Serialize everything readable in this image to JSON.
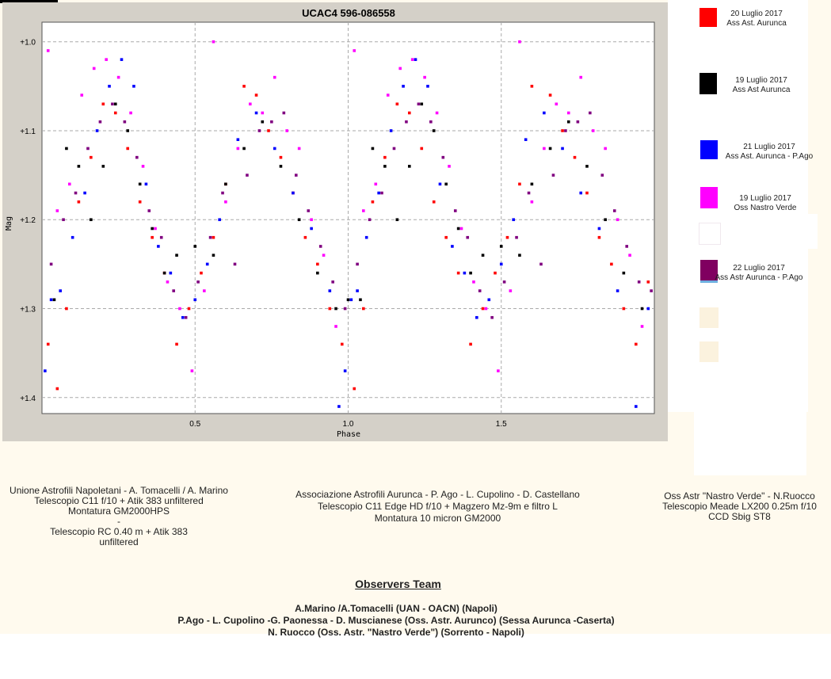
{
  "chart_data": {
    "type": "scatter",
    "title": "UCAC4 596-086558",
    "xlabel": "Phase",
    "ylabel": "Mag",
    "xlim": [
      0,
      2
    ],
    "ylim": [
      1.4,
      1.0
    ],
    "y_inverted": true,
    "grid": true,
    "xticks": [
      "0.5",
      "1.0",
      "1.5"
    ],
    "yticks": [
      "+1.0",
      "+1.1",
      "+1.2",
      "+1.3",
      "+1.4"
    ],
    "series": [
      {
        "name": "20 Luglio 2017 Ass Ast. Aurunca",
        "color": "#ff0000",
        "x": [
          0.02,
          0.05,
          0.08,
          0.12,
          0.16,
          0.2,
          0.24,
          0.28,
          0.32,
          0.36,
          0.4,
          0.44,
          0.48,
          0.52,
          0.56,
          0.6,
          0.66,
          0.7,
          0.74,
          0.78,
          0.82,
          0.86,
          0.9,
          0.94,
          0.98,
          1.02,
          1.05,
          1.08,
          1.12,
          1.16,
          1.2,
          1.24,
          1.28,
          1.32,
          1.36,
          1.4,
          1.44,
          1.48,
          1.52,
          1.56,
          1.6,
          1.66,
          1.7,
          1.74,
          1.78,
          1.82,
          1.86,
          1.9,
          1.94,
          1.98
        ],
        "values": [
          1.34,
          1.39,
          1.3,
          1.18,
          1.13,
          1.07,
          1.08,
          1.12,
          1.18,
          1.22,
          1.26,
          1.34,
          1.3,
          1.26,
          1.22,
          1.16,
          1.05,
          1.06,
          1.1,
          1.13,
          1.17,
          1.22,
          1.25,
          1.3,
          1.34,
          1.39,
          1.3,
          1.18,
          1.13,
          1.07,
          1.08,
          1.12,
          1.18,
          1.22,
          1.26,
          1.34,
          1.3,
          1.26,
          1.22,
          1.16,
          1.05,
          1.06,
          1.1,
          1.13,
          1.17,
          1.22,
          1.25,
          1.3,
          1.34,
          1.27
        ]
      },
      {
        "name": "19 Luglio 2017 Ass Ast Aurunca",
        "color": "#000000",
        "x": [
          0.04,
          0.08,
          0.12,
          0.16,
          0.2,
          0.24,
          0.28,
          0.32,
          0.36,
          0.4,
          0.44,
          0.5,
          0.56,
          0.6,
          0.66,
          0.72,
          0.78,
          0.84,
          0.9,
          0.96,
          1.0,
          1.04,
          1.08,
          1.12,
          1.16,
          1.2,
          1.24,
          1.28,
          1.32,
          1.36,
          1.4,
          1.44,
          1.5,
          1.56,
          1.6,
          1.66,
          1.72,
          1.78,
          1.84,
          1.9,
          1.96
        ],
        "values": [
          1.29,
          1.12,
          1.14,
          1.2,
          1.14,
          1.07,
          1.1,
          1.16,
          1.21,
          1.26,
          1.24,
          1.23,
          1.24,
          1.16,
          1.12,
          1.09,
          1.14,
          1.2,
          1.26,
          1.3,
          1.29,
          1.29,
          1.12,
          1.14,
          1.2,
          1.14,
          1.07,
          1.1,
          1.16,
          1.21,
          1.26,
          1.24,
          1.23,
          1.24,
          1.16,
          1.12,
          1.09,
          1.14,
          1.2,
          1.26,
          1.3
        ]
      },
      {
        "name": "21 Luglio 2017 Ass Ast. Aurunca - P.Ago",
        "color": "#0000ff",
        "x": [
          0.01,
          0.03,
          0.06,
          0.1,
          0.14,
          0.18,
          0.22,
          0.26,
          0.3,
          0.34,
          0.38,
          0.42,
          0.46,
          0.5,
          0.54,
          0.58,
          0.64,
          0.7,
          0.76,
          0.82,
          0.88,
          0.94,
          0.97,
          0.99,
          1.01,
          1.03,
          1.06,
          1.1,
          1.14,
          1.18,
          1.22,
          1.26,
          1.3,
          1.34,
          1.38,
          1.42,
          1.46,
          1.5,
          1.54,
          1.58,
          1.64,
          1.7,
          1.76,
          1.82,
          1.88,
          1.94,
          1.98
        ],
        "values": [
          1.37,
          1.29,
          1.28,
          1.22,
          1.17,
          1.1,
          1.05,
          1.02,
          1.05,
          1.16,
          1.23,
          1.26,
          1.31,
          1.29,
          1.25,
          1.2,
          1.11,
          1.08,
          1.12,
          1.17,
          1.21,
          1.28,
          1.41,
          1.37,
          1.29,
          1.28,
          1.22,
          1.17,
          1.1,
          1.05,
          1.02,
          1.05,
          1.16,
          1.23,
          1.26,
          1.31,
          1.29,
          1.25,
          1.2,
          1.11,
          1.08,
          1.12,
          1.17,
          1.21,
          1.28,
          1.41,
          1.3
        ]
      },
      {
        "name": "19 Luglio 2017 Oss Nastro Verde",
        "color": "#ff00ff",
        "x": [
          0.02,
          0.05,
          0.09,
          0.13,
          0.17,
          0.21,
          0.25,
          0.29,
          0.33,
          0.37,
          0.41,
          0.45,
          0.49,
          0.53,
          0.56,
          0.6,
          0.64,
          0.68,
          0.72,
          0.76,
          0.8,
          0.84,
          0.88,
          0.92,
          0.96,
          1.02,
          1.05,
          1.09,
          1.13,
          1.17,
          1.21,
          1.25,
          1.29,
          1.33,
          1.37,
          1.41,
          1.45,
          1.49,
          1.53,
          1.56,
          1.6,
          1.64,
          1.68,
          1.72,
          1.76,
          1.8,
          1.84,
          1.88,
          1.92,
          1.96
        ],
        "values": [
          1.01,
          1.19,
          1.16,
          1.06,
          1.03,
          1.02,
          1.04,
          1.08,
          1.14,
          1.21,
          1.27,
          1.3,
          1.37,
          1.28,
          1.0,
          1.18,
          1.12,
          1.07,
          1.08,
          1.04,
          1.1,
          1.12,
          1.2,
          1.24,
          1.32,
          1.01,
          1.19,
          1.16,
          1.06,
          1.03,
          1.02,
          1.04,
          1.08,
          1.14,
          1.21,
          1.27,
          1.3,
          1.37,
          1.28,
          1.0,
          1.18,
          1.12,
          1.07,
          1.08,
          1.04,
          1.1,
          1.12,
          1.2,
          1.24,
          1.32
        ]
      },
      {
        "name": "22 Luglio 2017 Ass Astr Aurunca - P.Ago",
        "color": "#800080",
        "x": [
          0.03,
          0.07,
          0.11,
          0.15,
          0.19,
          0.23,
          0.27,
          0.31,
          0.35,
          0.39,
          0.43,
          0.47,
          0.51,
          0.55,
          0.59,
          0.63,
          0.67,
          0.71,
          0.75,
          0.79,
          0.83,
          0.87,
          0.91,
          0.95,
          0.99,
          1.03,
          1.07,
          1.11,
          1.15,
          1.19,
          1.23,
          1.27,
          1.31,
          1.35,
          1.39,
          1.43,
          1.47,
          1.51,
          1.55,
          1.59,
          1.63,
          1.67,
          1.71,
          1.75,
          1.79,
          1.83,
          1.87,
          1.91,
          1.95,
          1.99
        ],
        "values": [
          1.25,
          1.2,
          1.17,
          1.12,
          1.09,
          1.07,
          1.09,
          1.13,
          1.19,
          1.22,
          1.28,
          1.31,
          1.27,
          1.22,
          1.17,
          1.25,
          1.15,
          1.1,
          1.09,
          1.08,
          1.15,
          1.19,
          1.23,
          1.27,
          1.3,
          1.25,
          1.2,
          1.17,
          1.12,
          1.09,
          1.07,
          1.09,
          1.13,
          1.19,
          1.22,
          1.28,
          1.31,
          1.27,
          1.22,
          1.17,
          1.25,
          1.15,
          1.1,
          1.09,
          1.08,
          1.15,
          1.19,
          1.23,
          1.27,
          1.28
        ]
      }
    ]
  },
  "legend": [
    {
      "line1": "20 Luglio 2017",
      "line2": "Ass Ast. Aurunca",
      "color": "#ff0000"
    },
    {
      "line1": "19 Luglio 2017",
      "line2": "Ass Ast Aurunca",
      "color": "#000000"
    },
    {
      "line1": "21 Luglio 2017",
      "line2": "Ass Ast. Aurunca - P.Ago",
      "color": "#0000ff"
    },
    {
      "line1": "19 Luglio 2017",
      "line2": "Oss Nastro Verde",
      "color": "#ff00ff"
    },
    {
      "line1": "22 Luglio 2017",
      "line2": "Ass Astr Aurunca - P.Ago",
      "color": "#800080"
    }
  ],
  "info": {
    "uan": [
      "Unione Astrofili Napoletani - A. Tomacelli / A. Marino",
      "Telescopio C11 f/10 + Atik 383 unfiltered",
      "Montatura GM2000HPS",
      "-",
      "Telescopio RC 0.40 m + Atik 383",
      "unfiltered"
    ],
    "aurunca": [
      "Associazione Astrofili Aurunca - P. Ago - L. Cupolino - D. Castellano",
      "Telescopio C11 Edge HD f/10 + Magzero Mz-9m e filtro L",
      "Montatura 10 micron GM2000"
    ],
    "nastro": [
      "Oss Astr \"Nastro Verde\" - N.Ruocco",
      "Telescopio Meade LX200 0.25m f/10",
      "CCD Sbig ST8"
    ]
  },
  "team": {
    "title": "Observers Team",
    "lines": [
      "A.Marino /A.Tomacelli (UAN - OACN) (Napoli)",
      "P.Ago - L. Cupolino -G. Paonessa - D. Muscianese (Oss. Astr. Aurunco) (Sessa Aurunca -Caserta)",
      "N. Ruocco (Oss. Astr. \"Nastro Verde\") (Sorrento - Napoli)"
    ]
  }
}
